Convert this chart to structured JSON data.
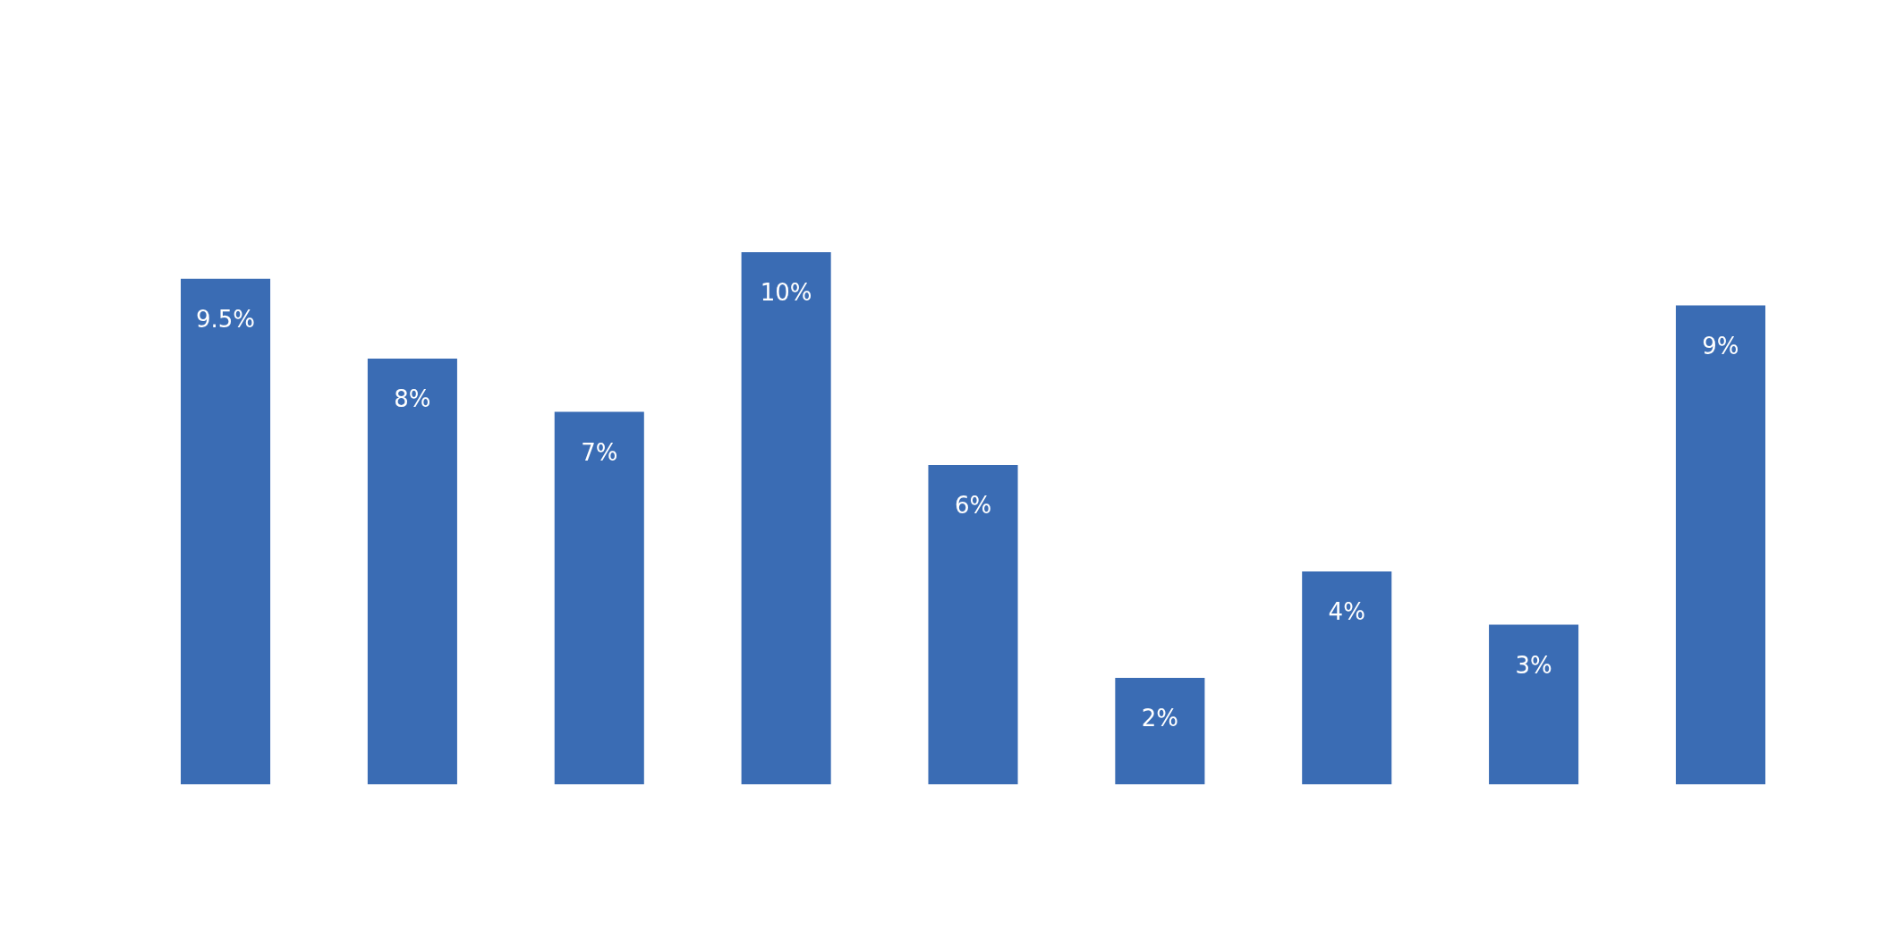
{
  "chart_data": {
    "type": "bar",
    "categories": [
      null,
      null,
      null,
      null,
      null,
      null,
      null,
      null,
      null
    ],
    "values": [
      9.5,
      8,
      7,
      10,
      6,
      2,
      4,
      3,
      9
    ],
    "value_labels": [
      "9.5%",
      "8%",
      "7%",
      "10%",
      "6%",
      "2%",
      "4%",
      "3%",
      "9%"
    ],
    "color": "#3a6cb4"
  }
}
